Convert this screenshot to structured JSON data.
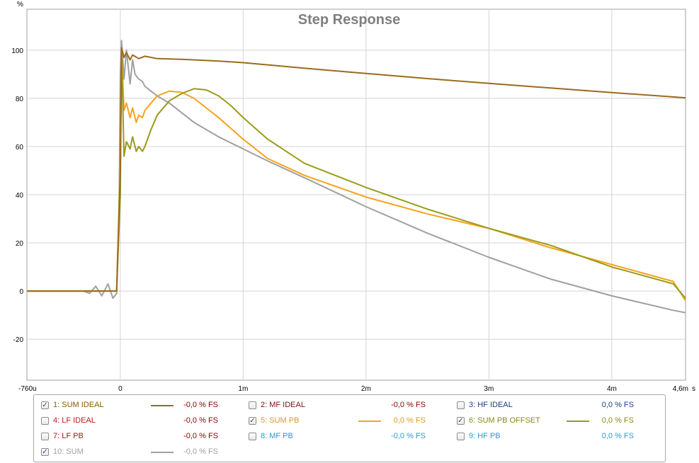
{
  "chart_data": {
    "type": "line",
    "title": "Step Response",
    "ylabel": "%",
    "xunit": "s",
    "xlim": [
      -0.00076,
      0.0046
    ],
    "ylim": [
      -37,
      117
    ],
    "grid": true,
    "xticks": [
      {
        "v": -0.00076,
        "label": "-760u"
      },
      {
        "v": 0,
        "label": "0"
      },
      {
        "v": 0.001,
        "label": "1m"
      },
      {
        "v": 0.002,
        "label": "2m"
      },
      {
        "v": 0.003,
        "label": "3m"
      },
      {
        "v": 0.004,
        "label": "4m"
      },
      {
        "v": 0.0046,
        "label": "4,6m"
      }
    ],
    "yticks": [
      {
        "v": 100,
        "label": "100"
      },
      {
        "v": 80,
        "label": "80"
      },
      {
        "v": 60,
        "label": "60"
      },
      {
        "v": 40,
        "label": "40"
      },
      {
        "v": 20,
        "label": "20"
      },
      {
        "v": 0,
        "label": "0"
      },
      {
        "v": -20,
        "label": "-20"
      }
    ],
    "series": [
      {
        "name": "10: SUM",
        "color": "#a0a0a0",
        "x": [
          -0.00076,
          -0.0003,
          -0.00025,
          -0.0002,
          -0.00015,
          -0.0001,
          -6e-05,
          -3e-05,
          -1e-05,
          0,
          1e-05,
          3e-05,
          5e-05,
          8e-05,
          0.0001,
          0.00012,
          0.00015,
          0.00018,
          0.0002,
          0.00025,
          0.0003,
          0.0004,
          0.0005,
          0.0006,
          0.0007,
          0.0008,
          0.001,
          0.0012,
          0.0015,
          0.002,
          0.0025,
          0.003,
          0.0035,
          0.004,
          0.0045,
          0.0046
        ],
        "y": [
          0,
          0,
          -1,
          2,
          -2,
          3,
          -3,
          -1,
          30,
          90,
          104,
          88,
          100,
          86,
          96,
          90,
          88,
          87,
          85,
          83,
          81,
          78,
          74,
          70,
          67,
          64,
          59,
          54,
          47,
          35,
          24,
          14,
          5,
          -2,
          -8,
          -9
        ]
      },
      {
        "name": "5: SUM PB",
        "color": "#f7a21b",
        "x": [
          -0.00076,
          -0.0002,
          -0.0001,
          -3e-05,
          0,
          1e-05,
          3e-05,
          5e-05,
          8e-05,
          0.0001,
          0.00013,
          0.00015,
          0.00018,
          0.0002,
          0.00025,
          0.0003,
          0.0004,
          0.0005,
          0.0006,
          0.0007,
          0.0008,
          0.001,
          0.0012,
          0.0015,
          0.002,
          0.0025,
          0.003,
          0.0035,
          0.004,
          0.0045,
          0.0046
        ],
        "y": [
          0,
          0,
          0,
          0,
          55,
          100,
          75,
          78,
          72,
          76,
          70,
          73,
          72,
          75,
          78,
          81,
          83,
          82.5,
          80,
          76,
          72,
          63,
          55,
          48,
          39,
          32,
          26,
          18,
          11,
          4,
          -4
        ]
      },
      {
        "name": "6: SUM PB OFFSET",
        "color": "#9b9b1b",
        "x": [
          -0.00076,
          -0.0001,
          -3e-05,
          0,
          1e-05,
          3e-05,
          5e-05,
          8e-05,
          0.0001,
          0.00013,
          0.00015,
          0.00018,
          0.0002,
          0.00025,
          0.0003,
          0.0004,
          0.0005,
          0.0006,
          0.0007,
          0.0008,
          0.0009,
          0.001,
          0.0012,
          0.0015,
          0.002,
          0.0025,
          0.003,
          0.0035,
          0.004,
          0.0045,
          0.0046
        ],
        "y": [
          0,
          0,
          0,
          40,
          100,
          56,
          62,
          59,
          64,
          58,
          60,
          58,
          60,
          67,
          73,
          79,
          82,
          84,
          83.5,
          81,
          77,
          72,
          63,
          53,
          43,
          34,
          26,
          19,
          10,
          3,
          -3
        ]
      },
      {
        "name": "1: SUM IDEAL",
        "color": "#9a6b1f",
        "x": [
          -0.00076,
          -0.0001,
          -3e-05,
          0,
          1e-05,
          3e-05,
          5e-05,
          8e-05,
          0.0001,
          0.00015,
          0.0002,
          0.0003,
          0.0005,
          0.0008,
          0.001,
          0.0015,
          0.002,
          0.0025,
          0.003,
          0.0035,
          0.004,
          0.0045,
          0.0046
        ],
        "y": [
          0,
          0,
          0,
          50,
          101,
          97,
          99,
          96,
          98,
          96.5,
          97.5,
          96.5,
          96.2,
          95.5,
          94.8,
          92.5,
          90.3,
          88.2,
          86.2,
          84.3,
          82.4,
          80.6,
          80.2
        ]
      }
    ]
  },
  "legend": {
    "items": [
      {
        "label": "1: SUM IDEAL",
        "value": "-0,0 % FS",
        "checked": true,
        "color": "#8a5a00",
        "valcolor": "#8a0000",
        "line": "#9a6b1f"
      },
      {
        "label": "2: MF IDEAL",
        "value": "-0,0 % FS",
        "checked": false,
        "color": "#7a1010",
        "valcolor": "#8a0000",
        "line": ""
      },
      {
        "label": "3: HF IDEAL",
        "value": "0,0 % FS",
        "checked": false,
        "color": "#1f3f80",
        "valcolor": "#1f3f80",
        "line": ""
      },
      {
        "label": "4: LF IDEAL",
        "value": "-0,0 % FS",
        "checked": false,
        "color": "#c01818",
        "valcolor": "#8a0000",
        "line": ""
      },
      {
        "label": "5: SUM PB",
        "value": "0,0 % FS",
        "checked": true,
        "color": "#e09818",
        "valcolor": "#e09818",
        "line": "#f7a21b"
      },
      {
        "label": "6: SUM PB OFFSET",
        "value": "0,0 % FS",
        "checked": true,
        "color": "#8a8a18",
        "valcolor": "#8a8a18",
        "line": "#9b9b1b"
      },
      {
        "label": "7: LF PB",
        "value": "-0,0 % FS",
        "checked": false,
        "color": "#a01818",
        "valcolor": "#8a0000",
        "line": ""
      },
      {
        "label": "8: MF PB",
        "value": "-0,0 % FS",
        "checked": false,
        "color": "#2a9ad0",
        "valcolor": "#2a9ad0",
        "line": ""
      },
      {
        "label": "9: HF PB",
        "value": "0,0 % FS",
        "checked": false,
        "color": "#2a9ad0",
        "valcolor": "#2a9ad0",
        "line": ""
      },
      {
        "label": "10: SUM",
        "value": "-0,0 % FS",
        "checked": true,
        "color": "#a0a0a0",
        "valcolor": "#a0a0a0",
        "line": "#a0a0a0"
      }
    ]
  }
}
